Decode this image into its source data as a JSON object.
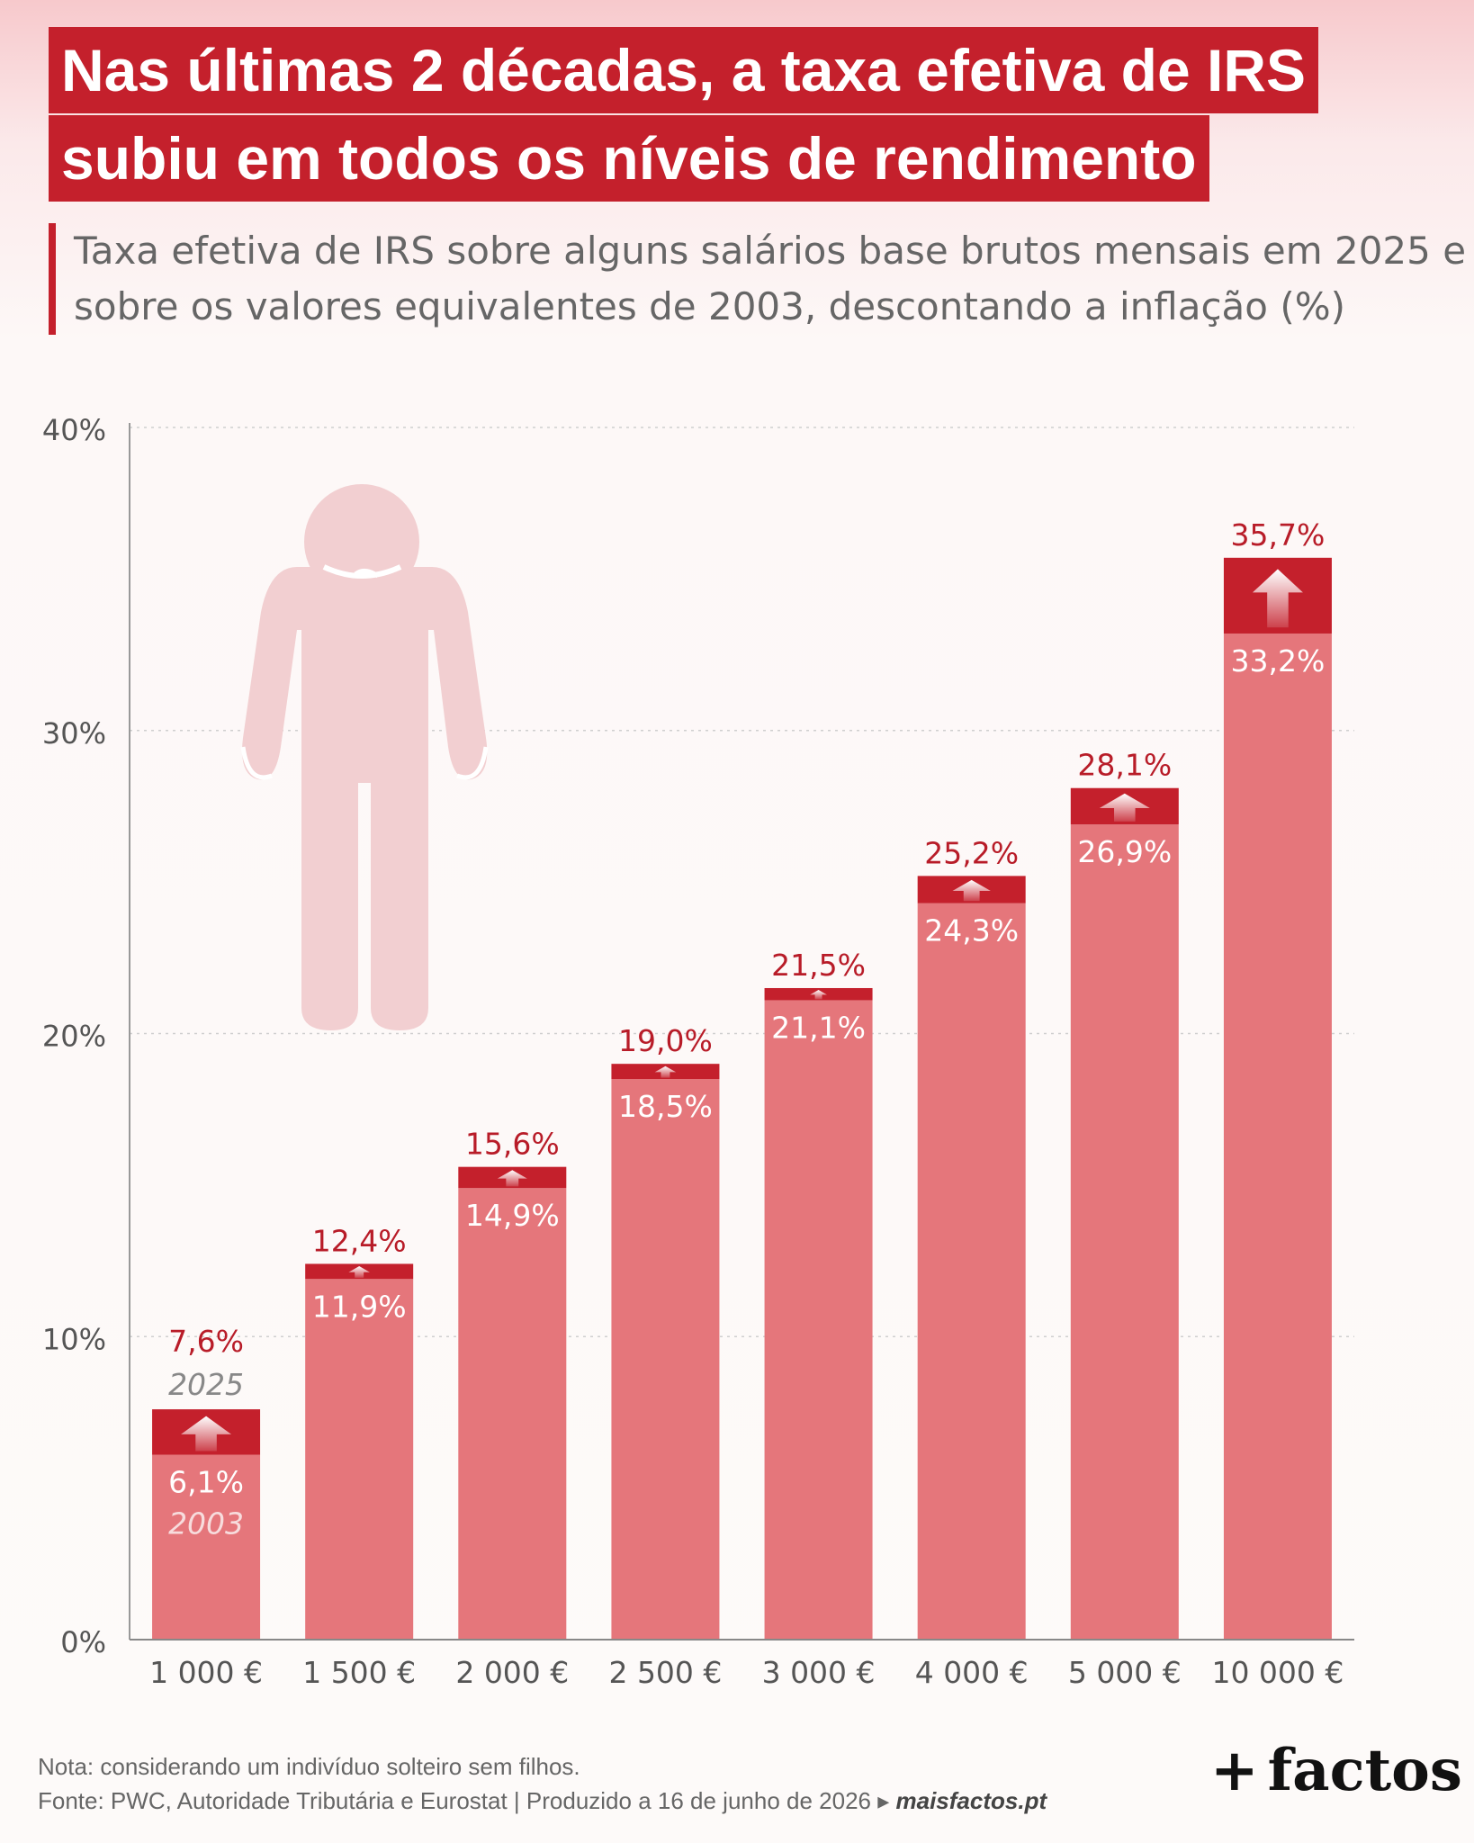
{
  "header": {
    "title_lines": [
      "Nas últimas 2 décadas, a taxa efetiva de IRS",
      "subiu em todos os níveis de rendimento"
    ],
    "subtitle_lines": [
      "Taxa efetiva de IRS sobre alguns salários base brutos mensais em 2025 e",
      "sobre os valores equivalentes de 2003, descontando a inflação (%)"
    ]
  },
  "chart_data": {
    "type": "bar",
    "categories": [
      "1 000 €",
      "1 500 €",
      "2 000 €",
      "2 500 €",
      "3 000 €",
      "4 000 €",
      "5 000 €",
      "10 000 €"
    ],
    "series": [
      {
        "name": "2003",
        "values": [
          6.1,
          11.9,
          14.9,
          18.5,
          21.1,
          24.3,
          26.9,
          33.2
        ],
        "labels": [
          "6,1%",
          "11,9%",
          "14,9%",
          "18,5%",
          "21,1%",
          "24,3%",
          "26,9%",
          "33,2%"
        ]
      },
      {
        "name": "2025",
        "values": [
          7.6,
          12.4,
          15.6,
          19.0,
          21.5,
          25.2,
          28.1,
          35.7
        ],
        "labels": [
          "7,6%",
          "12,4%",
          "15,6%",
          "19,0%",
          "21,5%",
          "25,2%",
          "28,1%",
          "35,7%"
        ]
      }
    ],
    "yticks": [
      "0%",
      "10%",
      "20%",
      "30%",
      "40%"
    ],
    "ylim": [
      0,
      40
    ],
    "grid": true,
    "colors": {
      "base": "#e5767b",
      "increase": "#c4202c",
      "label_increase": "#b81c28",
      "label_base": "#ffffff",
      "series_name": "#888888",
      "figure": "#f2cfd1"
    },
    "icons": [
      "person-empty-pockets-icon",
      "arrow-up-icon"
    ]
  },
  "footer": {
    "note": "Nota: considerando um indivíduo solteiro sem filhos.",
    "source": "Fonte: PWC, Autoridade Tributária e Eurostat | Produzido a 16 de junho de 2026 ▸ ",
    "site": "maisfactos.pt",
    "logo_plus": "+",
    "logo_text": "factos"
  }
}
